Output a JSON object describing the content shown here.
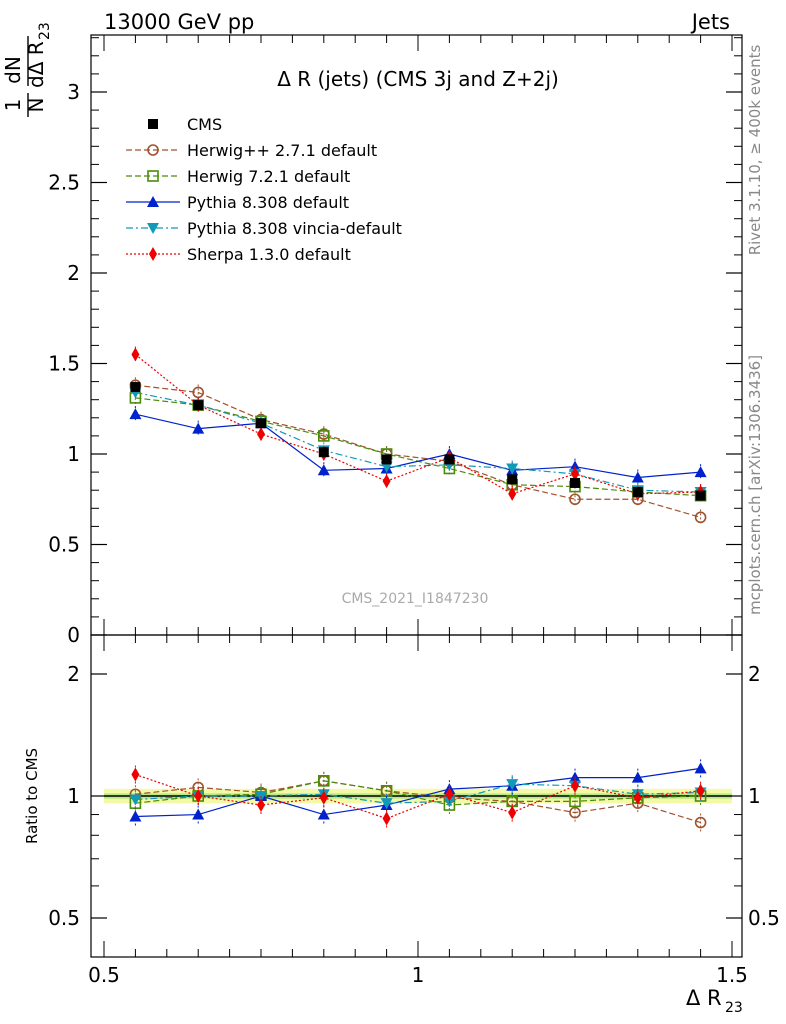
{
  "header": {
    "left": "13000 GeV pp",
    "right": "Jets"
  },
  "side_labels": {
    "rivet": "Rivet 3.1.10, ≥ 400k events",
    "mcplots": "mcplots.cern.ch [arXiv:1306.3436]"
  },
  "chart_data": [
    {
      "type": "line",
      "panel": "main",
      "title": "Δ R (jets) (CMS 3j and Z+2j)",
      "ylabel_num": "1",
      "ylabel_den": "N",
      "ylabel_dnum": "dN",
      "ylabel_dden": "dΔ R",
      "ylabel_sub": "23",
      "watermark": "CMS_2021_I1847230",
      "xlim": [
        0.5,
        1.5
      ],
      "ylim": [
        0,
        3.3
      ],
      "yticks": [
        0,
        0.5,
        1,
        1.5,
        2,
        2.5,
        3
      ],
      "ytick_labels": [
        "0",
        "0.5",
        "1",
        "1.5",
        "2",
        "2.5",
        "3"
      ],
      "x": [
        0.55,
        0.65,
        0.75,
        0.85,
        0.95,
        1.05,
        1.15,
        1.25,
        1.35,
        1.45
      ],
      "series": [
        {
          "name": "CMS",
          "color": "#000000",
          "marker": "square-filled",
          "dash": "none",
          "values": [
            1.37,
            1.27,
            1.17,
            1.01,
            0.97,
            0.97,
            0.86,
            0.84,
            0.79,
            0.77
          ]
        },
        {
          "name": "Herwig++ 2.7.1 default",
          "color": "#a0522d",
          "marker": "circle-open",
          "dash": "dashed",
          "values": [
            1.38,
            1.34,
            1.19,
            1.11,
            1.0,
            0.96,
            0.83,
            0.75,
            0.75,
            0.65
          ]
        },
        {
          "name": "Herwig 7.2.1 default",
          "color": "#4b8b0a",
          "marker": "square-open",
          "dash": "dashed",
          "values": [
            1.31,
            1.27,
            1.18,
            1.1,
            1.0,
            0.92,
            0.83,
            0.82,
            0.79,
            0.77
          ]
        },
        {
          "name": "Pythia 8.308 default",
          "color": "#0022cc",
          "marker": "triangle-up",
          "dash": "solid",
          "values": [
            1.22,
            1.14,
            1.17,
            0.91,
            0.92,
            1.0,
            0.91,
            0.93,
            0.87,
            0.9
          ]
        },
        {
          "name": "Pythia 8.308 vincia-default",
          "color": "#119ab8",
          "marker": "triangle-down",
          "dash": "dashdot",
          "values": [
            1.34,
            1.27,
            1.17,
            1.02,
            0.93,
            0.94,
            0.92,
            0.89,
            0.8,
            0.79
          ]
        },
        {
          "name": "Sherpa 1.3.0 default",
          "color": "#ee0000",
          "marker": "diamond",
          "dash": "dotted",
          "values": [
            1.55,
            1.27,
            1.11,
            1.0,
            0.85,
            0.98,
            0.78,
            0.89,
            0.78,
            0.79
          ]
        }
      ]
    },
    {
      "type": "line",
      "panel": "ratio",
      "ylabel": "Ratio to CMS",
      "xlabel": "Δ R",
      "xlabel_sub": "23",
      "xlim": [
        0.5,
        1.5
      ],
      "ylim": [
        0.4,
        2.3
      ],
      "xticks": [
        0.5,
        1,
        1.5
      ],
      "xtick_labels": [
        "0.5",
        "1",
        "1.5"
      ],
      "yticks": [
        0.5,
        1,
        2
      ],
      "ytick_labels": [
        "0.5",
        "1",
        "2"
      ],
      "x": [
        0.55,
        0.65,
        0.75,
        0.85,
        0.95,
        1.05,
        1.15,
        1.25,
        1.35,
        1.45
      ],
      "band": [
        0.97,
        1.03
      ],
      "series": [
        {
          "name": "Herwig++ 2.7.1 default",
          "values": [
            1.01,
            1.05,
            1.02,
            1.09,
            1.03,
            0.99,
            0.97,
            0.91,
            0.96,
            0.86
          ]
        },
        {
          "name": "Herwig 7.2.1 default",
          "values": [
            0.96,
            1.0,
            1.01,
            1.09,
            1.03,
            0.95,
            0.97,
            0.97,
            0.99,
            1.0
          ]
        },
        {
          "name": "Pythia 8.308 default",
          "values": [
            0.89,
            0.9,
            1.0,
            0.9,
            0.95,
            1.04,
            1.06,
            1.11,
            1.11,
            1.17
          ]
        },
        {
          "name": "Pythia 8.308 vincia-default",
          "values": [
            0.98,
            1.0,
            1.0,
            1.01,
            0.96,
            0.97,
            1.07,
            1.06,
            1.01,
            1.02
          ]
        },
        {
          "name": "Sherpa 1.3.0 default",
          "values": [
            1.13,
            1.0,
            0.95,
            0.99,
            0.88,
            1.01,
            0.91,
            1.06,
            0.99,
            1.03
          ]
        }
      ]
    }
  ]
}
